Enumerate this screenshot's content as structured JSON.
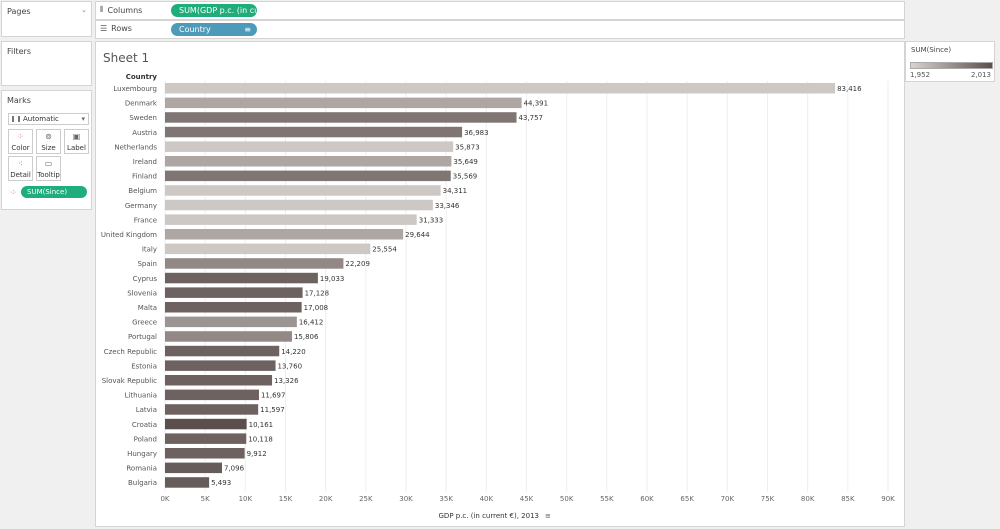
{
  "panels": {
    "pages_title": "Pages",
    "filters_title": "Filters",
    "marks_title": "Marks"
  },
  "shelves": {
    "columns_label": "Columns",
    "columns_pill": "SUM(GDP p.c. (in cur..",
    "rows_label": "Rows",
    "rows_pill": "Country"
  },
  "marks": {
    "type_select": "Automatic",
    "buttons": [
      "Color",
      "Size",
      "Label",
      "Detail",
      "Tooltip"
    ],
    "color_pill": "SUM(Since)"
  },
  "legend": {
    "title": "SUM(Since)",
    "min_label": "1,952",
    "max_label": "2,013"
  },
  "colors": {
    "green_pill": "#1fad7c",
    "blue_pill": "#4e9bb9",
    "color_light": "#d8d3d0",
    "color_dark": "#5a4f4d"
  },
  "chart_data": {
    "type": "bar",
    "orientation": "horizontal",
    "title": "Sheet 1",
    "row_header": "Country",
    "xlabel": "GDP p.c. (in current €), 2013",
    "xlim": [
      0,
      90000
    ],
    "xticks": [
      0,
      5000,
      10000,
      15000,
      20000,
      25000,
      30000,
      35000,
      40000,
      45000,
      50000,
      55000,
      60000,
      65000,
      70000,
      75000,
      80000,
      85000,
      90000
    ],
    "xtick_labels": [
      "0K",
      "5K",
      "10K",
      "15K",
      "20K",
      "25K",
      "30K",
      "35K",
      "40K",
      "45K",
      "50K",
      "55K",
      "60K",
      "65K",
      "70K",
      "75K",
      "80K",
      "85K",
      "90K"
    ],
    "grid": true,
    "color_field": "SUM(Since)",
    "color_range": [
      1952,
      2013
    ],
    "categories": [
      "Luxembourg",
      "Denmark",
      "Sweden",
      "Austria",
      "Netherlands",
      "Ireland",
      "Finland",
      "Belgium",
      "Germany",
      "France",
      "United Kingdom",
      "Italy",
      "Spain",
      "Cyprus",
      "Slovenia",
      "Malta",
      "Greece",
      "Portugal",
      "Czech Republic",
      "Estonia",
      "Slovak Republic",
      "Lithuania",
      "Latvia",
      "Croatia",
      "Poland",
      "Hungary",
      "Romania",
      "Bulgaria"
    ],
    "values": [
      83416,
      44391,
      43757,
      36983,
      35873,
      35649,
      35569,
      34311,
      33346,
      31333,
      29644,
      25554,
      22209,
      19033,
      17128,
      17008,
      16412,
      15806,
      14220,
      13760,
      13326,
      11697,
      11597,
      10161,
      10118,
      9912,
      7096,
      5493
    ],
    "value_labels": [
      "83,416",
      "44,391",
      "43,757",
      "36,983",
      "35,873",
      "35,649",
      "35,569",
      "34,311",
      "33,346",
      "31,333",
      "29,644",
      "25,554",
      "22,209",
      "19,033",
      "17,128",
      "17,008",
      "16,412",
      "15,806",
      "14,220",
      "13,760",
      "13,326",
      "11,697",
      "11,597",
      "10,161",
      "10,118",
      "9,912",
      "7,096",
      "5,493"
    ],
    "since": [
      1957,
      1973,
      1995,
      1995,
      1957,
      1973,
      1995,
      1957,
      1957,
      1957,
      1973,
      1957,
      1986,
      2004,
      2004,
      2004,
      1981,
      1986,
      2004,
      2004,
      2004,
      2004,
      2004,
      2013,
      2004,
      2004,
      2007,
      2007
    ]
  }
}
